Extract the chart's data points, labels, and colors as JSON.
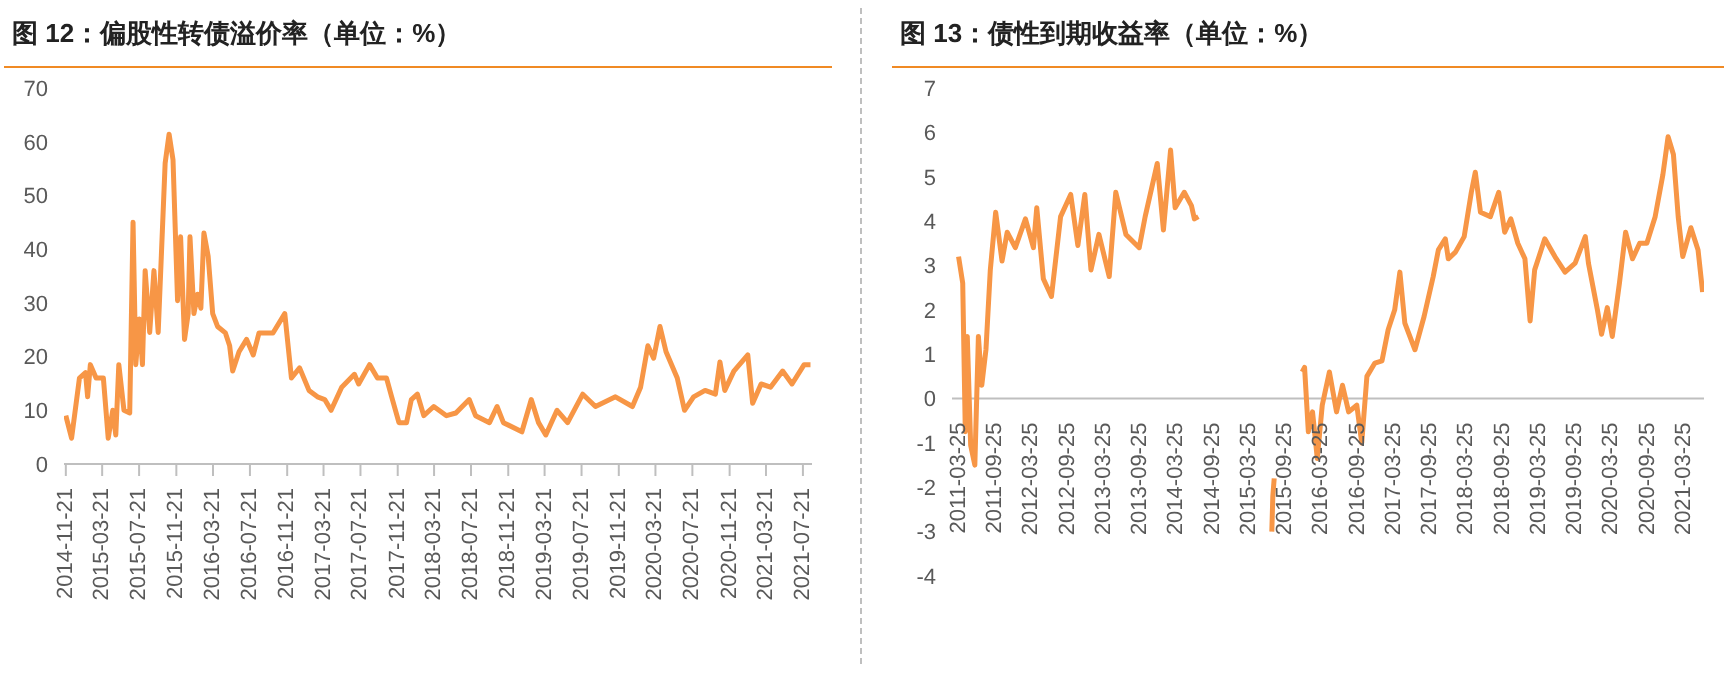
{
  "chart_data": [
    {
      "type": "line",
      "title": "图 12：偏股性转债溢价率（单位：%）",
      "xlim": [
        "2014-11-15",
        "2021-08-20"
      ],
      "ylim": [
        0,
        70
      ],
      "yticks": [
        0,
        10,
        20,
        30,
        40,
        50,
        60,
        70
      ],
      "xticks": [
        "2014-11-21",
        "2015-03-21",
        "2015-07-21",
        "2015-11-21",
        "2016-03-21",
        "2016-07-21",
        "2016-11-21",
        "2017-03-21",
        "2017-07-21",
        "2017-11-21",
        "2018-03-21",
        "2018-07-21",
        "2018-11-21",
        "2019-03-21",
        "2019-07-21",
        "2019-11-21",
        "2020-03-21",
        "2020-07-21",
        "2020-11-21",
        "2021-03-21",
        "2021-07-21"
      ],
      "grid": false,
      "legend": false,
      "marker": "none",
      "line_style": "solid",
      "series": [
        {
          "color": "#f79646",
          "x": [
            "2014-11-21",
            "2014-12-10",
            "2015-01-05",
            "2015-01-25",
            "2015-02-01",
            "2015-02-10",
            "2015-03-01",
            "2015-03-25",
            "2015-04-10",
            "2015-04-25",
            "2015-05-05",
            "2015-05-15",
            "2015-06-01",
            "2015-06-20",
            "2015-07-01",
            "2015-07-10",
            "2015-07-22",
            "2015-08-01",
            "2015-08-10",
            "2015-08-25",
            "2015-09-08",
            "2015-09-22",
            "2015-10-15",
            "2015-10-28",
            "2015-11-10",
            "2015-11-25",
            "2015-12-05",
            "2015-12-18",
            "2015-12-30",
            "2016-01-05",
            "2016-01-18",
            "2016-01-30",
            "2016-02-10",
            "2016-02-20",
            "2016-03-05",
            "2016-03-20",
            "2016-04-05",
            "2016-05-01",
            "2016-05-15",
            "2016-05-25",
            "2016-06-15",
            "2016-07-10",
            "2016-08-01",
            "2016-08-20",
            "2016-09-10",
            "2016-10-05",
            "2016-11-13",
            "2016-12-05",
            "2017-01-01",
            "2017-02-01",
            "2017-03-01",
            "2017-03-25",
            "2017-04-15",
            "2017-05-20",
            "2017-07-01",
            "2017-07-15",
            "2017-08-20",
            "2017-09-15",
            "2017-10-15",
            "2017-11-01",
            "2017-11-25",
            "2017-12-20",
            "2018-01-05",
            "2018-01-25",
            "2018-02-15",
            "2018-03-20",
            "2018-05-01",
            "2018-06-01",
            "2018-07-15",
            "2018-08-05",
            "2018-09-20",
            "2018-10-15",
            "2018-11-05",
            "2019-01-05",
            "2019-02-05",
            "2019-03-01",
            "2019-03-25",
            "2019-05-01",
            "2019-06-05",
            "2019-07-25",
            "2019-09-05",
            "2019-11-10",
            "2020-01-05",
            "2020-02-01",
            "2020-02-25",
            "2020-03-15",
            "2020-04-05",
            "2020-04-25",
            "2020-06-01",
            "2020-06-25",
            "2020-07-25",
            "2020-09-01",
            "2020-10-05",
            "2020-10-20",
            "2020-11-05",
            "2020-12-05",
            "2021-01-20",
            "2021-02-05",
            "2021-03-05",
            "2021-04-05",
            "2021-05-15",
            "2021-06-15",
            "2021-07-25",
            "2021-08-15"
          ],
          "values": [
            9,
            4.8,
            16,
            17,
            12.5,
            18.5,
            16,
            16,
            4.8,
            10,
            5.4,
            18.5,
            10,
            9.5,
            45,
            18.5,
            27,
            18.5,
            36,
            24.5,
            36,
            24.5,
            56,
            61.4,
            56.6,
            30.4,
            42.3,
            23.2,
            28,
            42.3,
            28,
            31.6,
            29,
            43,
            38.7,
            28,
            25.6,
            24.4,
            22,
            17.3,
            20.9,
            23.2,
            20.3,
            24.4,
            24.4,
            24.4,
            28,
            16,
            17.9,
            13.7,
            12.5,
            12,
            10,
            14.3,
            16.7,
            14.9,
            18.5,
            16,
            16,
            12.5,
            7.7,
            7.7,
            12,
            13,
            9,
            10.7,
            9,
            9.5,
            12,
            9,
            7.7,
            10.7,
            7.7,
            6,
            12,
            7.7,
            5.4,
            10,
            7.7,
            13,
            10.7,
            12.5,
            10.7,
            14.3,
            22,
            19.7,
            25.6,
            20.9,
            16,
            10,
            12.5,
            13.7,
            13,
            19,
            13.7,
            17.3,
            20.3,
            11.3,
            14.9,
            14.3,
            17.3,
            14.9,
            18.5,
            18.5
          ]
        }
      ]
    },
    {
      "type": "line",
      "title": "图 13：债性到期收益率（单位：%）",
      "xlim": [
        "2011-02-20",
        "2021-07-05"
      ],
      "ylim": [
        -4,
        7
      ],
      "yticks": [
        -4,
        -3,
        -2,
        -1,
        0,
        1,
        2,
        3,
        4,
        5,
        6,
        7
      ],
      "xticks": [
        "2011-03-25",
        "2011-09-25",
        "2012-03-25",
        "2012-09-25",
        "2013-03-25",
        "2013-09-25",
        "2014-03-25",
        "2014-09-25",
        "2015-03-25",
        "2015-09-25",
        "2016-03-25",
        "2016-09-25",
        "2017-03-25",
        "2017-09-25",
        "2018-03-25",
        "2018-09-25",
        "2019-03-25",
        "2019-09-25",
        "2020-03-25",
        "2020-09-25",
        "2021-03-25"
      ],
      "grid": false,
      "legend": false,
      "marker": "none",
      "line_style": "solid",
      "series": [
        {
          "color": "#f79646",
          "x": [
            "2011-03-25",
            "2011-04-15",
            "2011-04-28",
            "2011-05-08",
            "2011-05-25",
            "2011-06-15",
            "2011-07-03",
            "2011-07-20",
            "2011-08-10",
            "2011-09-01",
            "2011-09-28",
            "2011-10-30",
            "2011-11-25",
            "2012-01-05",
            "2012-02-25",
            "2012-04-05",
            "2012-04-22",
            "2012-05-25",
            "2012-07-05",
            "2012-08-20",
            "2012-10-10",
            "2012-11-15",
            "2012-12-20",
            "2013-01-20",
            "2013-03-01",
            "2013-04-22",
            "2013-05-25",
            "2013-07-15",
            "2013-09-20",
            "2013-10-20",
            "2013-12-20",
            "2014-01-20",
            "2014-02-25",
            "2014-03-20",
            "2014-05-05",
            "2014-06-10",
            "2014-06-25",
            "2014-07-15",
            "2015-01-01",
            "2015-07-20",
            "2015-07-25",
            "2015-08-01",
            "2015-10-15",
            "2015-12-20",
            "2016-01-01",
            "2016-01-20",
            "2016-02-10",
            "2016-03-05",
            "2016-03-30",
            "2016-05-05",
            "2016-06-10",
            "2016-07-10",
            "2016-08-10",
            "2016-09-20",
            "2016-10-15",
            "2016-11-10",
            "2016-12-20",
            "2017-01-25",
            "2017-02-25",
            "2017-03-30",
            "2017-04-25",
            "2017-05-20",
            "2017-07-10",
            "2017-08-25",
            "2017-10-10",
            "2017-11-05",
            "2017-12-10",
            "2017-12-25",
            "2018-01-30",
            "2018-03-15",
            "2018-04-20",
            "2018-05-10",
            "2018-06-05",
            "2018-07-25",
            "2018-09-05",
            "2018-10-05",
            "2018-11-05",
            "2018-12-10",
            "2019-01-15",
            "2019-02-10",
            "2019-03-05",
            "2019-04-25",
            "2019-06-15",
            "2019-08-05",
            "2019-09-25",
            "2019-11-15",
            "2019-12-01",
            "2020-01-15",
            "2020-02-05",
            "2020-03-05",
            "2020-03-30",
            "2020-05-05",
            "2020-06-05",
            "2020-07-10",
            "2020-08-15",
            "2020-09-20",
            "2020-11-01",
            "2020-12-10",
            "2021-01-05",
            "2021-02-01",
            "2021-02-25",
            "2021-03-20",
            "2021-04-30",
            "2021-06-05",
            "2021-06-28"
          ],
          "values": [
            3.2,
            2.6,
            -0.75,
            1.4,
            -1.05,
            -1.5,
            1.4,
            0.3,
            1.1,
            2.9,
            4.2,
            3.1,
            3.75,
            3.4,
            4.05,
            3.4,
            4.3,
            2.7,
            2.3,
            4.1,
            4.6,
            3.45,
            4.6,
            2.9,
            3.7,
            2.75,
            4.65,
            3.7,
            3.4,
            4.1,
            5.3,
            3.8,
            5.6,
            4.3,
            4.65,
            4.35,
            4.05,
            4.1,
            null,
            -3.0,
            -2.2,
            -1.8,
            null,
            0.6,
            0.7,
            -0.75,
            -0.3,
            -1.35,
            -0.15,
            0.6,
            -0.3,
            0.3,
            -0.3,
            -0.15,
            -1.0,
            0.5,
            0.8,
            0.85,
            1.55,
            2.0,
            2.85,
            1.7,
            1.1,
            1.85,
            2.75,
            3.35,
            3.6,
            3.15,
            3.3,
            3.65,
            4.65,
            5.1,
            4.2,
            4.1,
            4.65,
            3.75,
            4.05,
            3.5,
            3.15,
            1.75,
            2.9,
            3.6,
            3.2,
            2.85,
            3.05,
            3.65,
            3.05,
            2.0,
            1.45,
            2.05,
            1.4,
            2.6,
            3.75,
            3.15,
            3.5,
            3.5,
            4.1,
            5.05,
            5.9,
            5.5,
            4.1,
            3.2,
            3.85,
            3.35,
            2.4
          ]
        }
      ]
    }
  ]
}
